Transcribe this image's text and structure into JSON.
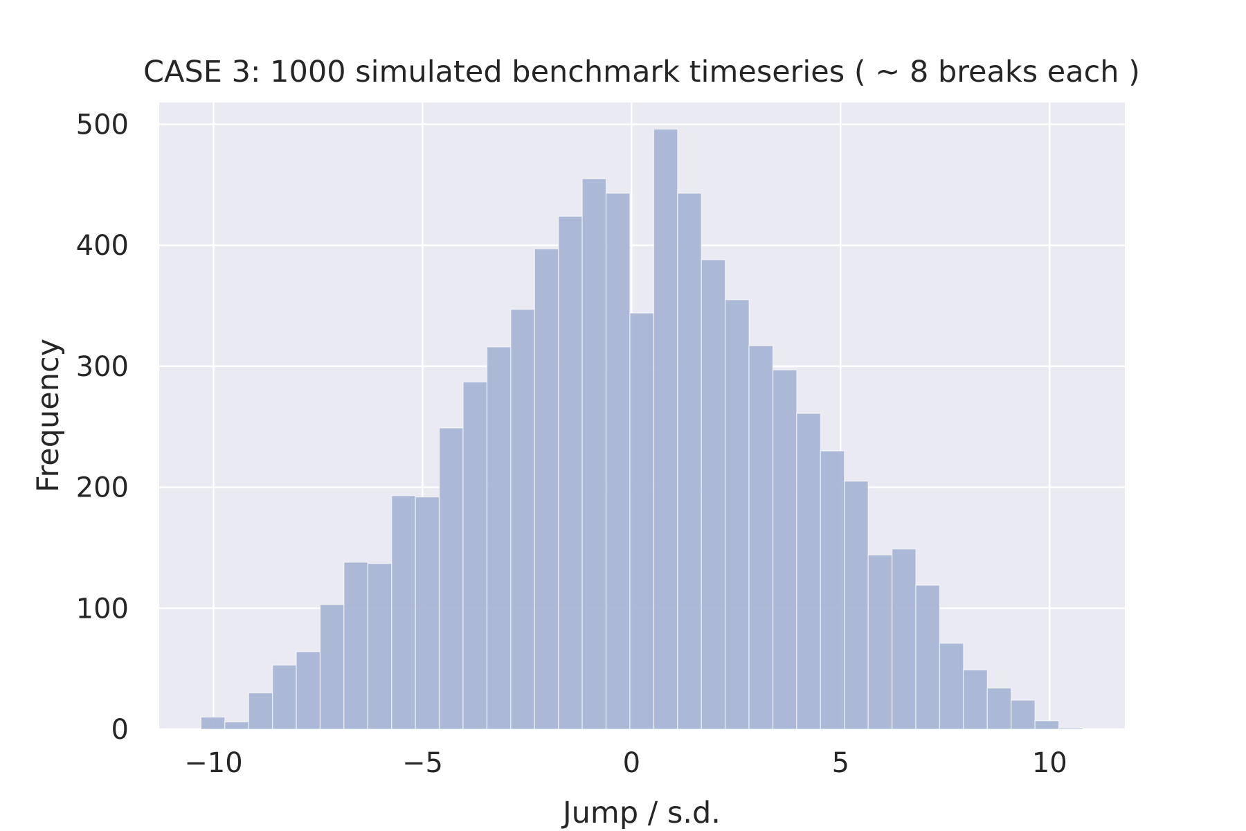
{
  "chart_data": {
    "type": "bar",
    "title": "CASE 3: 1000 simulated benchmark timeseries ( ~ 8 breaks each )",
    "xlabel": "Jump / s.d.",
    "ylabel": "Frequency",
    "xlim": [
      -11.3,
      11.8
    ],
    "ylim": [
      0,
      518
    ],
    "x_ticks": [
      -10,
      -5,
      0,
      5,
      10
    ],
    "x_tick_labels": [
      "−10",
      "−5",
      "0",
      "5",
      "10"
    ],
    "y_ticks": [
      0,
      100,
      200,
      300,
      400,
      500
    ],
    "y_tick_labels": [
      "0",
      "100",
      "200",
      "300",
      "400",
      "500"
    ],
    "grid": true,
    "legend": "none",
    "bin_edges": [
      -10.3,
      -9.73,
      -9.16,
      -8.59,
      -8.02,
      -7.45,
      -6.88,
      -6.31,
      -5.74,
      -5.17,
      -4.6,
      -4.03,
      -3.46,
      -2.89,
      -2.32,
      -1.75,
      -1.18,
      -0.61,
      -0.04,
      0.53,
      1.1,
      1.67,
      2.24,
      2.81,
      3.38,
      3.95,
      4.52,
      5.09,
      5.66,
      6.23,
      6.8,
      7.37,
      7.94,
      8.51,
      9.08,
      9.65,
      10.22,
      10.79
    ],
    "values": [
      10,
      6,
      30,
      53,
      64,
      103,
      138,
      137,
      193,
      192,
      249,
      287,
      316,
      347,
      397,
      424,
      455,
      443,
      344,
      496,
      443,
      388,
      355,
      317,
      297,
      261,
      230,
      205,
      144,
      149,
      119,
      71,
      49,
      34,
      24,
      7,
      1
    ],
    "bar_color": "#a5b4d4",
    "background_color": "#eaeaf2",
    "grid_color": "#ffffff"
  }
}
